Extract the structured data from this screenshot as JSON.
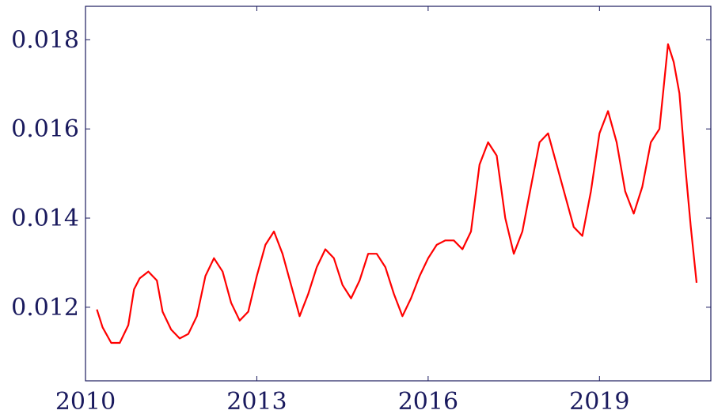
{
  "chart_data": {
    "type": "line",
    "title": "",
    "xlabel": "",
    "ylabel": "",
    "grid": false,
    "xlim": [
      2010.0,
      2020.95
    ],
    "ylim": [
      0.01035,
      0.01875
    ],
    "x_ticks": [
      2010,
      2013,
      2016,
      2019
    ],
    "x_tick_labels": [
      "2010",
      "2013",
      "2016",
      "2019"
    ],
    "y_ticks": [
      0.012,
      0.014,
      0.016,
      0.018
    ],
    "y_tick_labels": [
      "0.012",
      "0.014",
      "0.016",
      "0.018"
    ],
    "colors": {
      "series": "#ff0000",
      "axis": "#1a1a5e"
    },
    "series": [
      {
        "x": [
          2010.2,
          2010.3,
          2010.45,
          2010.6,
          2010.75,
          2010.85,
          2010.95,
          2011.1,
          2011.25,
          2011.35,
          2011.5,
          2011.65,
          2011.8,
          2011.95,
          2012.1,
          2012.25,
          2012.4,
          2012.55,
          2012.7,
          2012.85,
          2013.0,
          2013.15,
          2013.3,
          2013.45,
          2013.6,
          2013.75,
          2013.9,
          2014.05,
          2014.2,
          2014.35,
          2014.5,
          2014.65,
          2014.8,
          2014.95,
          2015.1,
          2015.25,
          2015.4,
          2015.55,
          2015.7,
          2015.85,
          2016.0,
          2016.15,
          2016.3,
          2016.45,
          2016.6,
          2016.75,
          2016.9,
          2017.05,
          2017.2,
          2017.35,
          2017.5,
          2017.65,
          2017.8,
          2017.95,
          2018.1,
          2018.25,
          2018.4,
          2018.55,
          2018.7,
          2018.85,
          2019.0,
          2019.15,
          2019.3,
          2019.45,
          2019.6,
          2019.75,
          2019.9,
          2020.05,
          2020.2,
          2020.3,
          2020.4,
          2020.5,
          2020.6,
          2020.7
        ],
        "values": [
          0.01195,
          0.01155,
          0.0112,
          0.0112,
          0.0116,
          0.0124,
          0.01265,
          0.0128,
          0.0126,
          0.0119,
          0.0115,
          0.0113,
          0.0114,
          0.0118,
          0.0127,
          0.0131,
          0.0128,
          0.0121,
          0.0117,
          0.0119,
          0.0127,
          0.0134,
          0.0137,
          0.0132,
          0.0125,
          0.0118,
          0.0123,
          0.0129,
          0.0133,
          0.0131,
          0.0125,
          0.0122,
          0.0126,
          0.0132,
          0.0132,
          0.0129,
          0.0123,
          0.0118,
          0.0122,
          0.0127,
          0.0131,
          0.0134,
          0.0135,
          0.0135,
          0.0133,
          0.0137,
          0.0152,
          0.0157,
          0.0154,
          0.014,
          0.0132,
          0.0137,
          0.0147,
          0.0157,
          0.0159,
          0.0152,
          0.0145,
          0.0138,
          0.0136,
          0.0146,
          0.0159,
          0.0164,
          0.0157,
          0.0146,
          0.0141,
          0.0147,
          0.0157,
          0.016,
          0.0179,
          0.0175,
          0.0168,
          0.0152,
          0.0138,
          0.01255
        ]
      }
    ]
  }
}
